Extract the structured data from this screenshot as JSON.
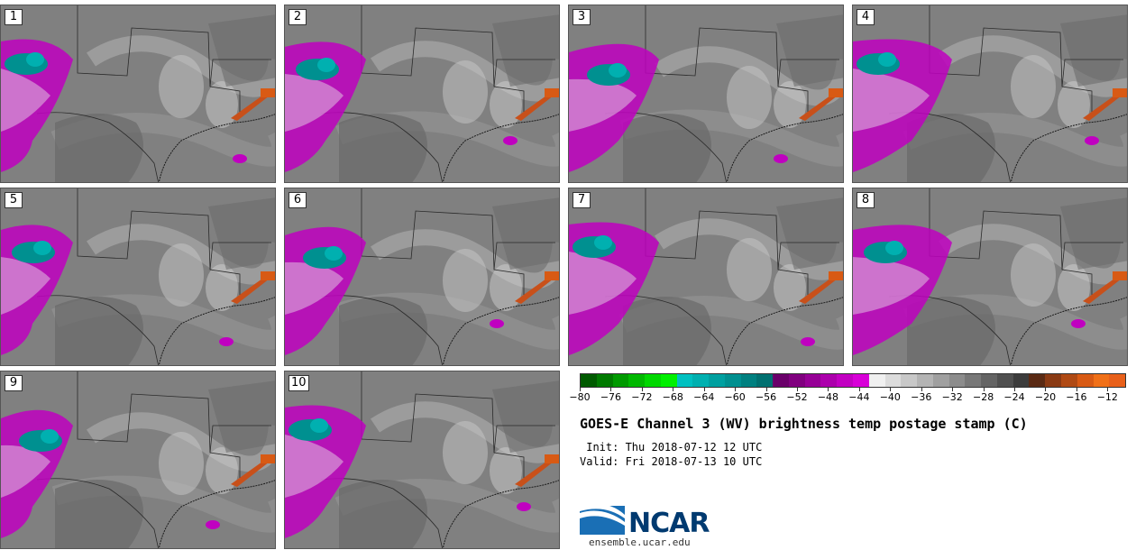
{
  "panels": [
    {
      "label": "1"
    },
    {
      "label": "2"
    },
    {
      "label": "3"
    },
    {
      "label": "4"
    },
    {
      "label": "5"
    },
    {
      "label": "6"
    },
    {
      "label": "7"
    },
    {
      "label": "8"
    },
    {
      "label": "9"
    },
    {
      "label": "10"
    }
  ],
  "colorbar": {
    "colors": [
      "#005a00",
      "#007a00",
      "#009a00",
      "#00b800",
      "#00d800",
      "#00f000",
      "#00c0c0",
      "#00b0b0",
      "#00a0a0",
      "#009090",
      "#008080",
      "#007070",
      "#6a006a",
      "#80007f",
      "#960096",
      "#ac00ac",
      "#c200c2",
      "#d800d8",
      "#f0f0f0",
      "#dcdcdc",
      "#c8c8c8",
      "#b4b4b4",
      "#a0a0a0",
      "#8c8c8c",
      "#787878",
      "#646464",
      "#505050",
      "#3c3c3c",
      "#5a2a14",
      "#8a3a14",
      "#b04a14",
      "#d85a14",
      "#f07018",
      "#e8601a"
    ],
    "tick_labels": [
      "−80",
      "−76",
      "−72",
      "−68",
      "−64",
      "−60",
      "−56",
      "−52",
      "−48",
      "−44",
      "−40",
      "−36",
      "−32",
      "−28",
      "−24",
      "−20",
      "−16",
      "−12"
    ],
    "min": -80,
    "max": -12
  },
  "title": "GOES-E Channel 3 (WV) brightness temp postage stamp (C)",
  "init": " Init: Thu 2018-07-12 12 UTC",
  "valid": "Valid: Fri 2018-07-13 10 UTC",
  "logo": "NCAR",
  "site": "ensemble.ucar.edu"
}
